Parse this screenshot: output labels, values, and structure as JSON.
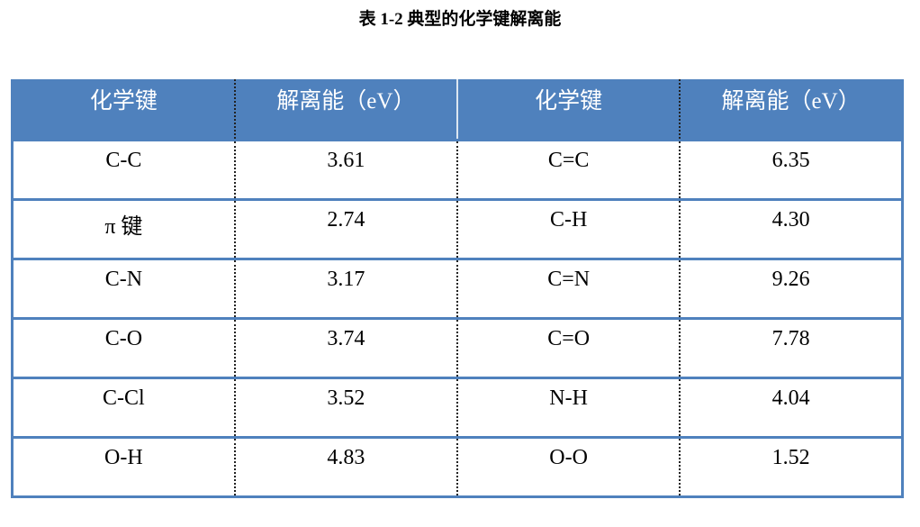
{
  "caption": "表 1-2 典型的化学键解离能",
  "headers": [
    "化学键",
    "解离能（eV）",
    "化学键",
    "解离能（eV）"
  ],
  "header_color": "#4f81bd",
  "rows": [
    [
      "C-C",
      "3.61",
      "C=C",
      "6.35"
    ],
    [
      "π 键",
      "2.74",
      "C-H",
      "4.30"
    ],
    [
      "C-N",
      "3.17",
      "C=N",
      "9.26"
    ],
    [
      "C-O",
      "3.74",
      "C=O",
      "7.78"
    ],
    [
      "C-Cl",
      "3.52",
      "N-H",
      "4.04"
    ],
    [
      "O-H",
      "4.83",
      "O-O",
      "1.52"
    ]
  ]
}
